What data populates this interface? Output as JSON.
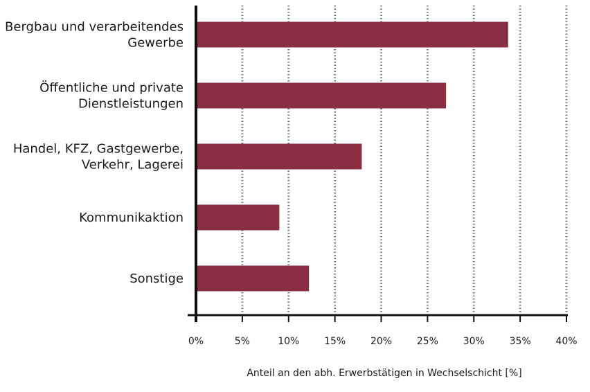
{
  "chart_data": {
    "type": "bar",
    "orientation": "horizontal",
    "categories": [
      [
        "Bergbau und verarbeitendes",
        "Gewerbe"
      ],
      [
        "Öffentliche und private",
        "Dienstleistungen"
      ],
      [
        "Handel, KFZ, Gastgewerbe,",
        "Verkehr, Lagerei"
      ],
      [
        "Kommunikaktion"
      ],
      [
        "Sonstige"
      ]
    ],
    "values": [
      33.7,
      27.0,
      17.9,
      9.0,
      12.2
    ],
    "xlim": [
      0,
      40
    ],
    "xticks": [
      0,
      5,
      10,
      15,
      20,
      25,
      30,
      35,
      40
    ],
    "tick_labels": [
      "0%",
      "5%",
      "10%",
      "15%",
      "20%",
      "25%",
      "30%",
      "35%",
      "40%"
    ],
    "xlabel": "Anteil an den abh. Erwerbstätigen in Wechselschicht [%]",
    "ylabel": "",
    "title": "",
    "grid": "vertical dotted",
    "colors": {
      "bar": "#8b2e42",
      "axis": "#111111",
      "grid": "#777777"
    }
  }
}
